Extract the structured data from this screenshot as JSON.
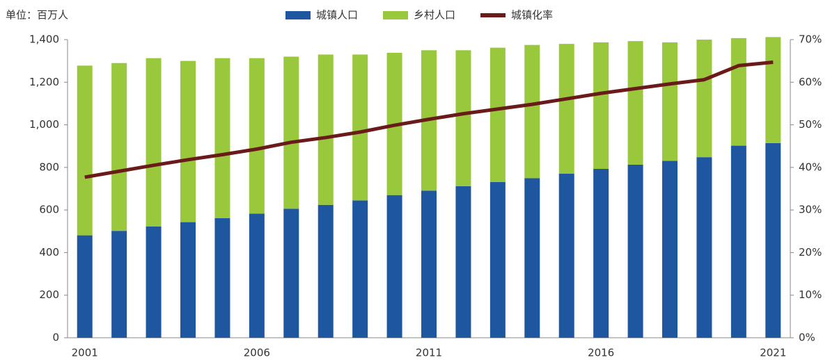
{
  "chart_data": {
    "type": "bar",
    "stacked": true,
    "unit_label": "单位：百万人",
    "categories": [
      "2001",
      null,
      null,
      null,
      null,
      "2006",
      null,
      null,
      null,
      null,
      "2011",
      null,
      null,
      null,
      null,
      "2016",
      null,
      null,
      null,
      null,
      "2021"
    ],
    "series": [
      {
        "name": "城镇人口",
        "color": "#1f56a0",
        "type": "bar",
        "values": [
          481,
          502,
          523,
          543,
          562,
          583,
          606,
          624,
          645,
          670,
          691,
          712,
          731,
          749,
          771,
          793,
          813,
          831,
          848,
          902,
          914
        ]
      },
      {
        "name": "乡村人口",
        "color": "#9ac83c",
        "type": "bar",
        "values": [
          797,
          788,
          790,
          757,
          751,
          730,
          714,
          706,
          685,
          668,
          659,
          638,
          631,
          626,
          609,
          594,
          580,
          556,
          552,
          505,
          498
        ]
      },
      {
        "name": "城镇化率",
        "color": "#6b1a1a",
        "type": "line",
        "axis": "y2",
        "values": [
          37.7,
          39.1,
          40.5,
          41.8,
          43.0,
          44.3,
          45.9,
          47.0,
          48.3,
          49.9,
          51.3,
          52.6,
          53.7,
          54.8,
          56.1,
          57.4,
          58.5,
          59.6,
          60.6,
          63.9,
          64.7
        ]
      }
    ],
    "ylim": [
      0,
      1400
    ],
    "yticks": [
      0,
      200,
      400,
      600,
      800,
      {
        "value": 1000,
        "label": "1,000"
      },
      {
        "value": 1200,
        "label": "1,200"
      },
      {
        "value": 1400,
        "label": "1,400"
      }
    ],
    "y2lim": [
      0,
      70
    ],
    "y2ticks": [
      {
        "value": 0,
        "label": "0%"
      },
      {
        "value": 10,
        "label": "10%"
      },
      {
        "value": 20,
        "label": "20%"
      },
      {
        "value": 30,
        "label": "30%"
      },
      {
        "value": 40,
        "label": "40%"
      },
      {
        "value": 50,
        "label": "50%"
      },
      {
        "value": 60,
        "label": "60%"
      },
      {
        "value": 70,
        "label": "70%"
      }
    ],
    "legend": "top"
  }
}
